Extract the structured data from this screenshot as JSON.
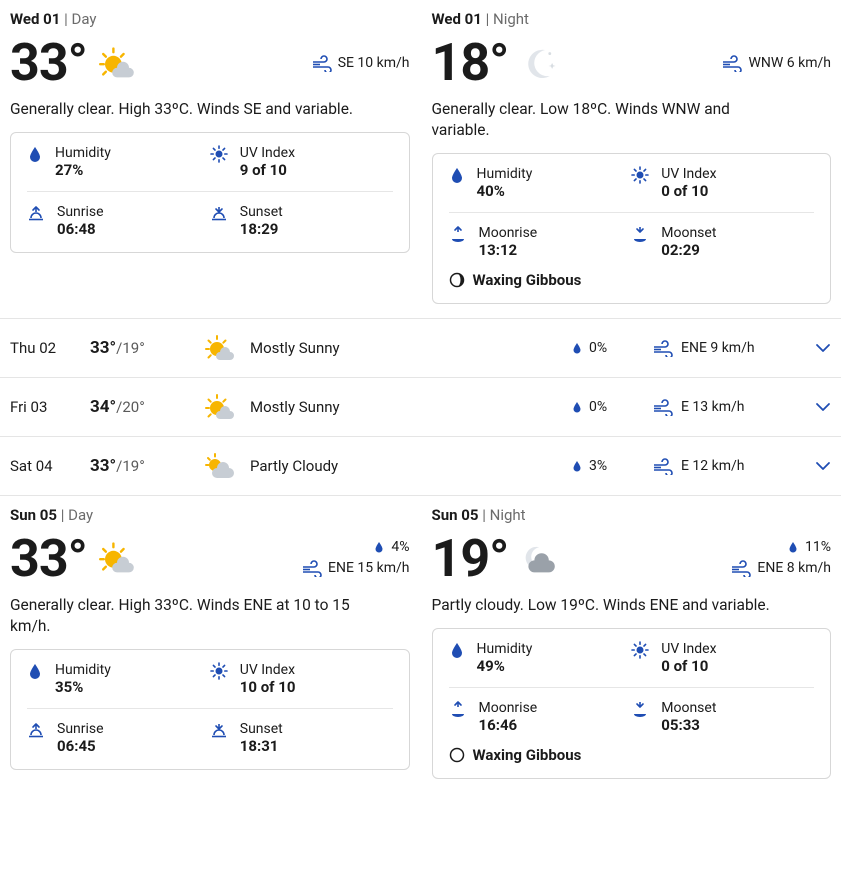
{
  "colors": {
    "accent": "#1f4db3",
    "sun": "#f2a900",
    "cloud": "#b9c0c7",
    "moon": "#d8dde2",
    "text": "#1b1b1b",
    "muted": "#6b6b6b",
    "border": "#d7d7d7",
    "divider": "#e5e5e5"
  },
  "typography": {
    "base_fontsize_pt": 11,
    "temp_big_pt": 39,
    "desc_pt": 12,
    "font_family": "Segoe UI"
  },
  "detail1": {
    "day": {
      "date": "Wed 01",
      "part_label": "Day",
      "temp": "33°",
      "icon": "mostly-sunny",
      "wind_text": "SE 10 km/h",
      "desc": "Generally clear. High 33ºC. Winds SE and variable.",
      "humidity_label": "Humidity",
      "humidity_value": "27%",
      "uv_label": "UV Index",
      "uv_value": "9 of 10",
      "sunrise_label": "Sunrise",
      "sunrise_value": "06:48",
      "sunset_label": "Sunset",
      "sunset_value": "18:29"
    },
    "night": {
      "date": "Wed 01",
      "part_label": "Night",
      "temp": "18°",
      "icon": "clear-night",
      "wind_text": "WNW 6 km/h",
      "desc": "Generally clear. Low 18ºC. Winds WNW and variable.",
      "humidity_label": "Humidity",
      "humidity_value": "40%",
      "uv_label": "UV Index",
      "uv_value": "0 of 10",
      "moonrise_label": "Moonrise",
      "moonrise_value": "13:12",
      "moonset_label": "Moonset",
      "moonset_value": "02:29",
      "phase_label": "Waxing Gibbous",
      "phase_icon": "waxing-gibbous"
    }
  },
  "forecast": [
    {
      "date": "Thu 02",
      "hi": "33°",
      "lo": "/19°",
      "icon": "mostly-sunny",
      "cond": "Mostly Sunny",
      "precip": "0%",
      "wind": "ENE 9 km/h"
    },
    {
      "date": "Fri 03",
      "hi": "34°",
      "lo": "/20°",
      "icon": "mostly-sunny",
      "cond": "Mostly Sunny",
      "precip": "0%",
      "wind": "E 13 km/h"
    },
    {
      "date": "Sat 04",
      "hi": "33°",
      "lo": "/19°",
      "icon": "partly-cloudy",
      "cond": "Partly Cloudy",
      "precip": "3%",
      "wind": "E 12 km/h"
    }
  ],
  "detail2": {
    "day": {
      "date": "Sun 05",
      "part_label": "Day",
      "temp": "33°",
      "icon": "mostly-sunny",
      "precip": "4%",
      "wind_text": "ENE 15 km/h",
      "desc": "Generally clear. High 33ºC. Winds ENE at 10 to 15 km/h.",
      "humidity_label": "Humidity",
      "humidity_value": "35%",
      "uv_label": "UV Index",
      "uv_value": "10 of 10",
      "sunrise_label": "Sunrise",
      "sunrise_value": "06:45",
      "sunset_label": "Sunset",
      "sunset_value": "18:31"
    },
    "night": {
      "date": "Sun 05",
      "part_label": "Night",
      "temp": "19°",
      "icon": "partly-cloudy-night",
      "precip": "11%",
      "wind_text": "ENE 8 km/h",
      "desc": "Partly cloudy. Low 19ºC. Winds ENE and variable.",
      "humidity_label": "Humidity",
      "humidity_value": "49%",
      "uv_label": "UV Index",
      "uv_value": "0 of 10",
      "moonrise_label": "Moonrise",
      "moonrise_value": "16:46",
      "moonset_label": "Moonset",
      "moonset_value": "05:33",
      "phase_label": "Waxing Gibbous",
      "phase_icon": "waxing-gibbous-open"
    }
  }
}
